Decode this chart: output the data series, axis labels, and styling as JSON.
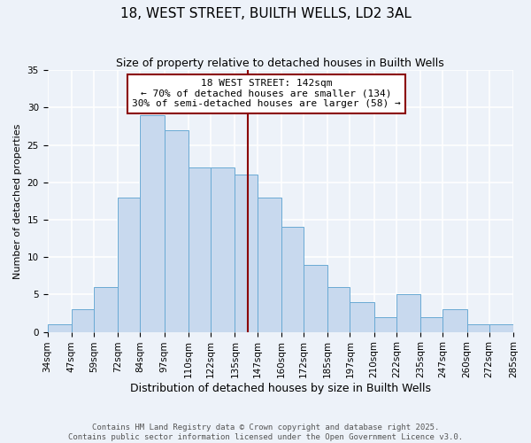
{
  "title": "18, WEST STREET, BUILTH WELLS, LD2 3AL",
  "subtitle": "Size of property relative to detached houses in Builth Wells",
  "xlabel": "Distribution of detached houses by size in Builth Wells",
  "ylabel": "Number of detached properties",
  "bin_edges": [
    34,
    47,
    59,
    72,
    84,
    97,
    110,
    122,
    135,
    147,
    160,
    172,
    185,
    197,
    210,
    222,
    235,
    247,
    260,
    272,
    285
  ],
  "bin_counts": [
    1,
    3,
    6,
    18,
    29,
    27,
    22,
    22,
    21,
    18,
    14,
    9,
    6,
    4,
    2,
    5,
    2,
    3,
    1,
    1
  ],
  "bar_fill_color": "#c8d9ee",
  "bar_edge_color": "#6aaad4",
  "vline_x": 142,
  "vline_color": "#8b0000",
  "annotation_title": "18 WEST STREET: 142sqm",
  "annotation_line1": "← 70% of detached houses are smaller (134)",
  "annotation_line2": "30% of semi-detached houses are larger (58) →",
  "annotation_box_edgecolor": "#8b0000",
  "background_color": "#edf2f9",
  "grid_color": "#ffffff",
  "ylim": [
    0,
    35
  ],
  "yticks": [
    0,
    5,
    10,
    15,
    20,
    25,
    30,
    35
  ],
  "title_fontsize": 11,
  "subtitle_fontsize": 9,
  "xlabel_fontsize": 9,
  "ylabel_fontsize": 8,
  "tick_fontsize": 7.5,
  "annotation_fontsize": 8,
  "footer_fontsize": 6.5,
  "footer_line1": "Contains HM Land Registry data © Crown copyright and database right 2025.",
  "footer_line2": "Contains public sector information licensed under the Open Government Licence v3.0."
}
